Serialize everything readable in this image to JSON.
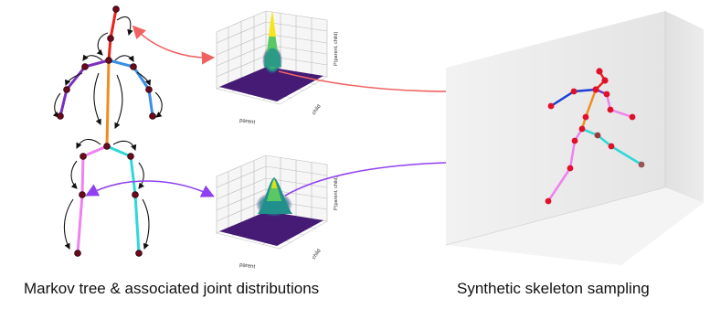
{
  "captions": {
    "left": "Markov tree & associated joint distributions",
    "right": "Synthetic skeleton sampling"
  },
  "plot_labels": {
    "x": "parent",
    "y": "child",
    "z": "P(parent, child)"
  },
  "colors": {
    "head": "#e8231a",
    "spine": "#f08c1e",
    "left_arm": "#7b2fbf",
    "right_arm": "#3a8ee6",
    "left_leg": "#ee82ee",
    "right_leg": "#2ed8d8",
    "joint": "#6a0a1e",
    "arrow_red": "#f06262",
    "arrow_purple": "#9040f0",
    "surface_base": "#3b0f6e"
  }
}
